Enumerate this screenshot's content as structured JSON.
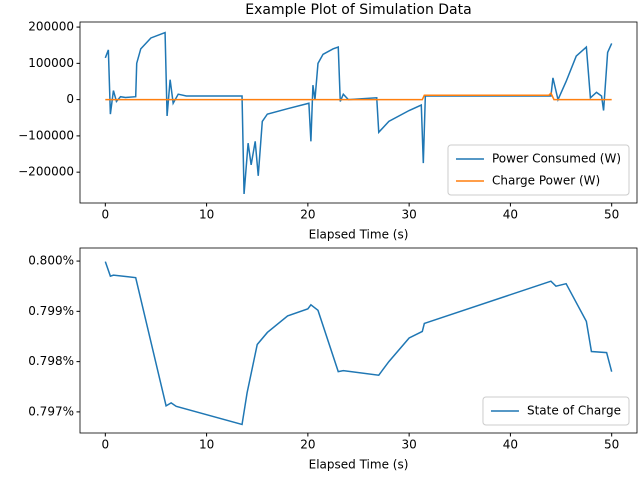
{
  "chart_data": [
    {
      "type": "line",
      "title": "Example Plot of Simulation Data",
      "x_label": "Elapsed Time (s)",
      "xlim": [
        -2.5,
        52.5
      ],
      "xticks": [
        0,
        10,
        20,
        30,
        40,
        50
      ],
      "ylim": [
        -285000,
        214000
      ],
      "yticks": [
        {
          "value": -200000,
          "label": "−200000"
        },
        {
          "value": -100000,
          "label": "−100000"
        },
        0,
        100000,
        200000
      ],
      "legend": "lower right",
      "series": [
        {
          "name": "Power Consumed (W)",
          "color": "#1f77b4",
          "x": [
            0,
            0.3,
            0.5,
            0.8,
            1.1,
            1.5,
            2,
            3,
            3.1,
            3.5,
            4.5,
            5.9,
            6.1,
            6.4,
            6.7,
            7.2,
            8,
            13.5,
            13.7,
            14.1,
            14.4,
            14.8,
            15.1,
            15.5,
            16,
            18,
            20.1,
            20.3,
            20.5,
            20.7,
            21,
            21.5,
            22.5,
            23,
            23.2,
            23.5,
            24,
            26.8,
            27,
            28,
            30,
            31.2,
            31.4,
            31.6,
            44,
            44.2,
            44.7,
            45.5,
            46.5,
            47.5,
            47.9,
            48.5,
            49,
            49.2,
            49.6,
            50
          ],
          "values": [
            115000,
            137000,
            -40000,
            25000,
            -5000,
            8000,
            6000,
            8000,
            100000,
            140000,
            170000,
            185000,
            -45000,
            55000,
            -10000,
            15000,
            10000,
            10000,
            -260000,
            -120000,
            -180000,
            -115000,
            -210000,
            -60000,
            -40000,
            -25000,
            -10000,
            -115000,
            40000,
            0,
            100000,
            125000,
            140000,
            145000,
            -5000,
            15000,
            0,
            5000,
            -90000,
            -60000,
            -30000,
            -15000,
            -175000,
            10000,
            10000,
            60000,
            0,
            50000,
            120000,
            145000,
            5000,
            20000,
            10000,
            -30000,
            130000,
            155000
          ]
        },
        {
          "name": "Charge Power (W)",
          "color": "#ff7f0e",
          "x": [
            0,
            31.3,
            31.5,
            43.8,
            44,
            44.3,
            50
          ],
          "values": [
            0,
            0,
            12000,
            12000,
            18000,
            0,
            0
          ]
        }
      ]
    },
    {
      "type": "line",
      "x_label": "Elapsed Time (s)",
      "xlim": [
        -2.5,
        52.5
      ],
      "xticks": [
        0,
        10,
        20,
        30,
        40,
        50
      ],
      "ylim": [
        0.79658,
        0.80026
      ],
      "yticks": [
        {
          "value": 0.797,
          "label": "0.797%"
        },
        {
          "value": 0.798,
          "label": "0.798%"
        },
        {
          "value": 0.799,
          "label": "0.799%"
        },
        {
          "value": 0.8,
          "label": "0.800%"
        }
      ],
      "legend": "lower right",
      "series": [
        {
          "name": "State of Charge",
          "color": "#1f77b4",
          "x": [
            0,
            0.5,
            0.8,
            3,
            6,
            6.5,
            7,
            13.5,
            14,
            15,
            16,
            18,
            20,
            20.3,
            21,
            23,
            23.5,
            27,
            28,
            30,
            31.3,
            31.5,
            44,
            44.5,
            45.5,
            47.5,
            48,
            49.5,
            50
          ],
          "values": [
            0.79999,
            0.7997,
            0.79972,
            0.79967,
            0.79712,
            0.79718,
            0.79711,
            0.79675,
            0.79738,
            0.79834,
            0.79858,
            0.79891,
            0.79905,
            0.79913,
            0.79902,
            0.7978,
            0.79782,
            0.79773,
            0.798,
            0.79847,
            0.7986,
            0.79876,
            0.7996,
            0.7995,
            0.79955,
            0.7988,
            0.7982,
            0.79818,
            0.7978
          ]
        }
      ]
    }
  ]
}
